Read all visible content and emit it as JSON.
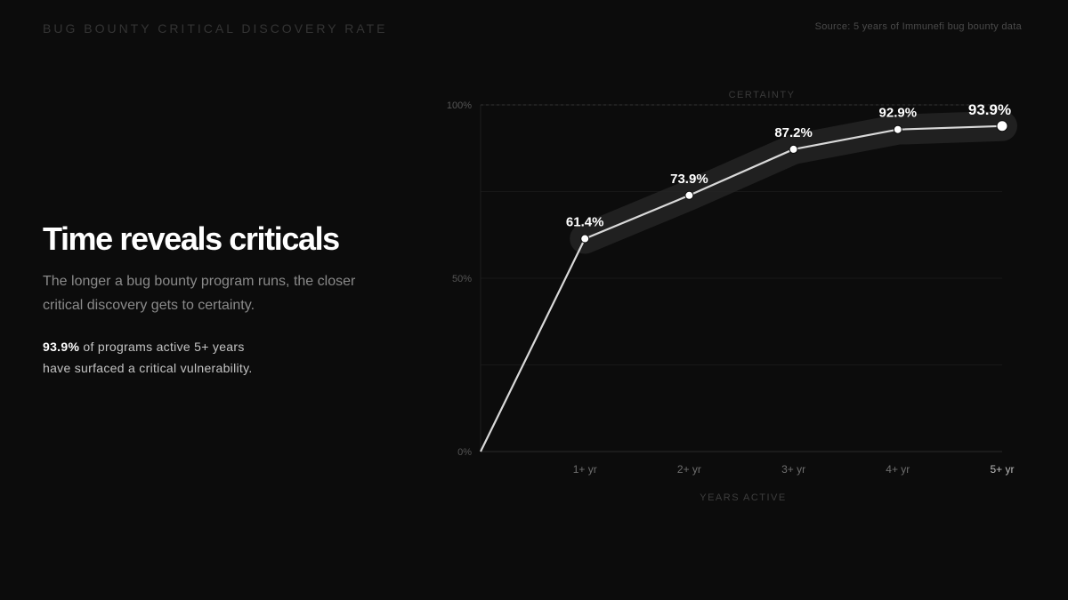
{
  "header": {
    "kicker": "BUG BOUNTY CRITICAL DISCOVERY RATE",
    "source": "Source: 5 years of Immunefi bug bounty data"
  },
  "headline": "Time reveals criticals",
  "subtitle": "The longer a bug bounty program runs, the closer critical discovery gets to certainty.",
  "stat": {
    "value": "93.9%",
    "line1_rest": " of programs active 5+ years",
    "line2": "have surfaced a critical vulnerability."
  },
  "colors": {
    "background": "#0c0c0c",
    "line": "#d9d9d9",
    "band": "#262626",
    "text_dim": "#8a8a8a"
  },
  "chart_data": {
    "type": "line",
    "x": [
      "",
      "1+ yr",
      "2+ yr",
      "3+ yr",
      "4+ yr",
      "5+ yr"
    ],
    "values": [
      0,
      61.4,
      73.9,
      87.2,
      92.9,
      93.9
    ],
    "data_labels": [
      "",
      "61.4%",
      "73.9%",
      "87.2%",
      "92.9%",
      "93.9%"
    ],
    "y_ticks": [
      {
        "value": 0,
        "label": "0%"
      },
      {
        "value": 50,
        "label": "50%"
      },
      {
        "value": 100,
        "label": "100%"
      }
    ],
    "ylim": [
      0,
      100
    ],
    "xlabel": "YEARS ACTIVE",
    "ylabel": "",
    "reference_line": {
      "value": 100,
      "label": "CERTAINTY"
    },
    "grid": true,
    "highlight_last": true
  }
}
